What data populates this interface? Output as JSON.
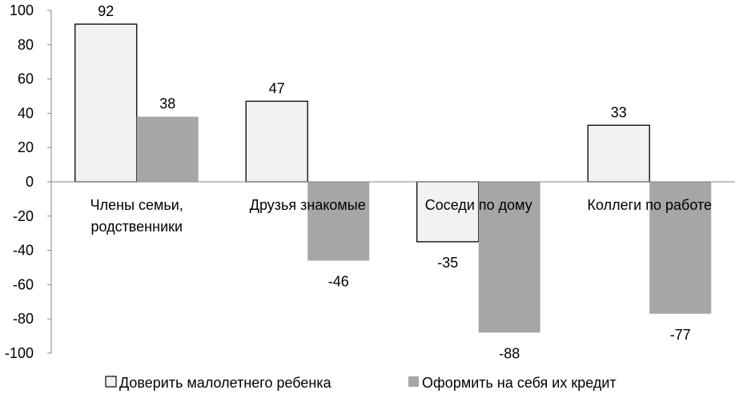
{
  "chart_data": {
    "type": "bar",
    "categories": [
      [
        "Члены семьи,",
        "родственники"
      ],
      [
        "Друзья знакомые"
      ],
      [
        "Соседи по дому"
      ],
      [
        "Коллеги по работе"
      ]
    ],
    "series": [
      {
        "name": "Доверить малолетнего ребенка",
        "values": [
          92,
          47,
          -35,
          33
        ],
        "color": "#f2f2f2",
        "stroke": "#000000"
      },
      {
        "name": "Оформить на себя их кредит",
        "values": [
          38,
          -46,
          -88,
          -77
        ],
        "color": "#a6a6a6",
        "stroke": "none"
      }
    ],
    "ylim": [
      -100,
      100
    ],
    "yticks": [
      100,
      80,
      60,
      40,
      20,
      0,
      -20,
      -40,
      -60,
      -80,
      -100
    ],
    "ytick_labels": [
      "100",
      "80",
      "60",
      "40",
      "20",
      "0",
      "-20",
      "-40",
      "-60",
      "-80",
      "-100"
    ],
    "grid": false,
    "legend_position": "bottom",
    "title": "",
    "xlabel": "",
    "ylabel": ""
  }
}
